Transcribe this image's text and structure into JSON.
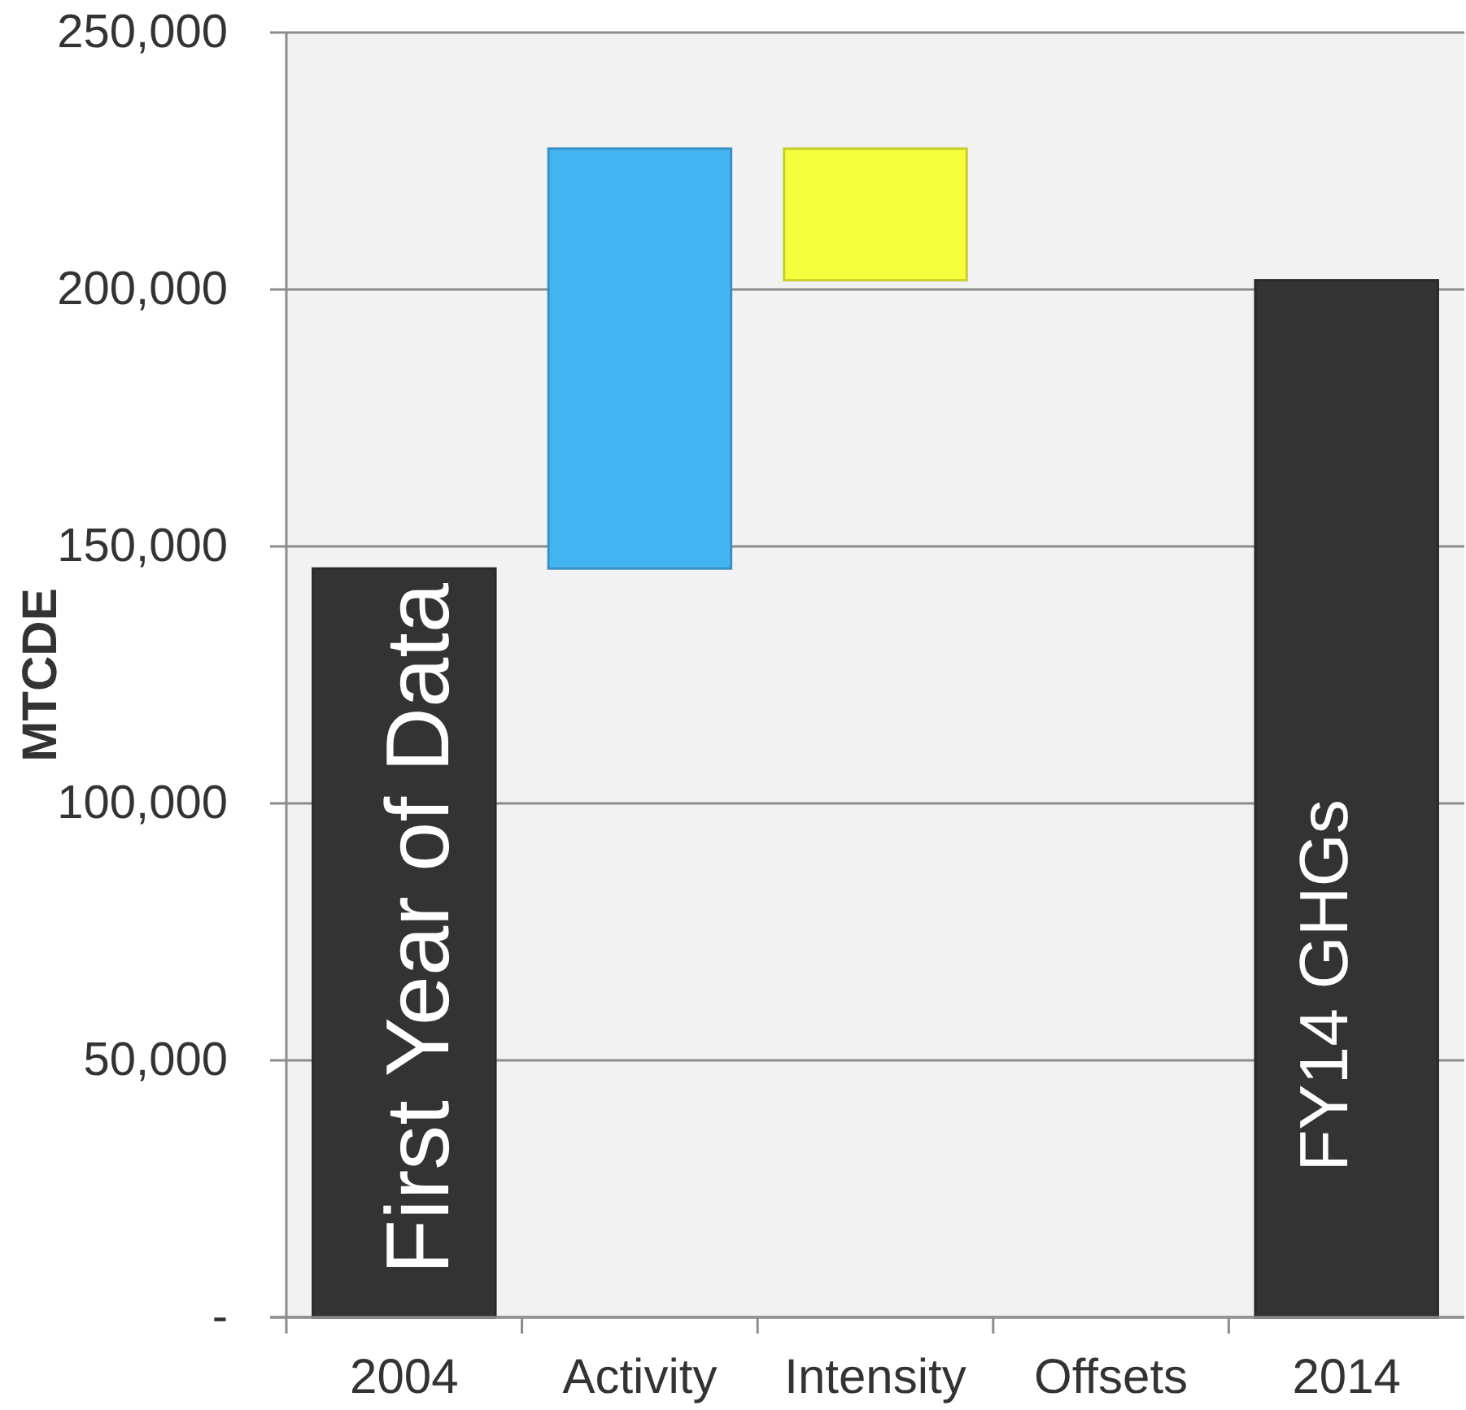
{
  "chart_data": {
    "type": "bar",
    "ylabel": "MTCDE",
    "categories": [
      "2004",
      "Activity",
      "Intensity",
      "Offsets",
      "2014"
    ],
    "values": [
      145700,
      81700,
      -25600,
      null,
      201800
    ],
    "base": [
      0,
      145700,
      227400,
      null,
      0
    ],
    "colors": [
      "#333333",
      "#45b4f2",
      "#f7ff3c",
      null,
      "#333333"
    ],
    "ylim": [
      0,
      250000
    ],
    "yticks": [
      {
        "value": 0,
        "label": "-"
      },
      {
        "value": 50000,
        "label": "50,000"
      },
      {
        "value": 100000,
        "label": "100,000"
      },
      {
        "value": 150000,
        "label": "150,000"
      },
      {
        "value": 200000,
        "label": "200,000"
      },
      {
        "value": 250000,
        "label": "250,000"
      }
    ],
    "grid": "y",
    "annotations": [
      "First Year of Data",
      "FY14 GHGs"
    ]
  }
}
